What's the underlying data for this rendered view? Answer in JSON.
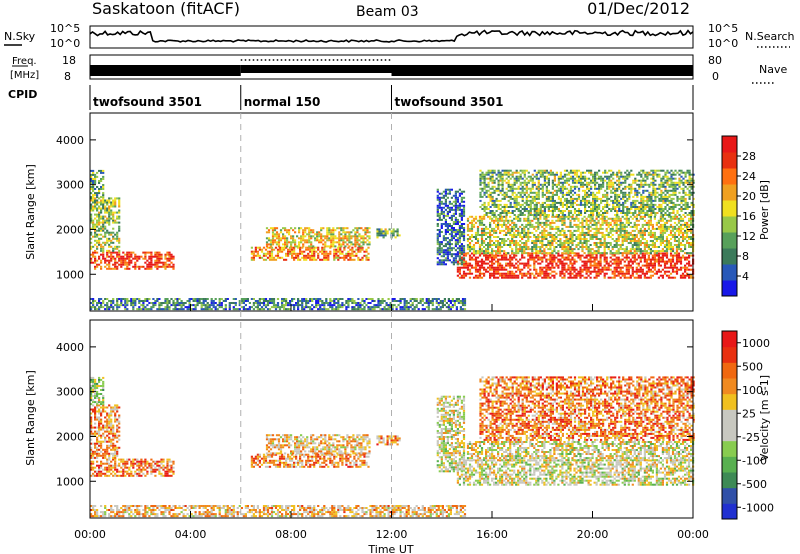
{
  "header": {
    "station": "Saskatoon (fitACF)",
    "beam": "Beam 03",
    "date": "01/Dec/2012"
  },
  "noise_panel": {
    "left_label": "N.Sky",
    "right_label": "N.Search",
    "left_ticks": [
      "10^5",
      "10^0"
    ],
    "right_ticks": [
      "10^5",
      "10^0"
    ]
  },
  "freq_panel": {
    "left_label_line1": "Freq.",
    "left_label_line2": "[MHz]",
    "right_label": "Nave",
    "left_ticks": [
      "18",
      "8"
    ],
    "right_ticks": [
      "80",
      "0"
    ]
  },
  "cpid": {
    "label": "CPID",
    "segments": [
      {
        "start_hour": 0,
        "end_hour": 6,
        "name": "twofsound 3501"
      },
      {
        "start_hour": 6,
        "end_hour": 12,
        "name": "normal 150"
      },
      {
        "start_hour": 12,
        "end_hour": 24,
        "name": "twofsound 3501"
      }
    ]
  },
  "x_axis": {
    "label": "Time UT",
    "range_hours": [
      0,
      24
    ],
    "ticks": [
      {
        "hour": 0,
        "label": "00:00"
      },
      {
        "hour": 4,
        "label": "04:00"
      },
      {
        "hour": 8,
        "label": "08:00"
      },
      {
        "hour": 12,
        "label": "12:00"
      },
      {
        "hour": 16,
        "label": "16:00"
      },
      {
        "hour": 20,
        "label": "20:00"
      },
      {
        "hour": 24,
        "label": "00:00"
      }
    ],
    "dashed_markers_hours": [
      6,
      12
    ]
  },
  "chart_data": [
    {
      "type": "heatmap",
      "parameter": "power",
      "ylabel": "Slant Range [km]",
      "ylim": [
        180,
        4600
      ],
      "yticks": [
        1000,
        2000,
        3000,
        4000
      ],
      "colorbar": {
        "label": "Power [dB]",
        "ticks": [
          "4",
          "8",
          "12",
          "16",
          "20",
          "24",
          "28"
        ],
        "colors": [
          "#1818e8",
          "#2858b8",
          "#3b7a5a",
          "#57a05a",
          "#98c848",
          "#f0e020",
          "#f0a020",
          "#ff7010",
          "#e83010",
          "#e81818"
        ]
      },
      "regions": [
        {
          "t": [
            0.0,
            3.3
          ],
          "r": [
            1100,
            1500
          ],
          "level": 0.85
        },
        {
          "t": [
            0.0,
            1.2
          ],
          "r": [
            1500,
            2700
          ],
          "level": 0.45
        },
        {
          "t": [
            0.0,
            0.5
          ],
          "r": [
            2700,
            3300
          ],
          "level": 0.35
        },
        {
          "t": [
            6.4,
            11.1
          ],
          "r": [
            1300,
            1600
          ],
          "level": 0.7
        },
        {
          "t": [
            7.0,
            11.1
          ],
          "r": [
            1600,
            2050
          ],
          "level": 0.55
        },
        {
          "t": [
            11.4,
            12.3
          ],
          "r": [
            1800,
            2000
          ],
          "level": 0.4
        },
        {
          "t": [
            0.0,
            14.9
          ],
          "r": [
            200,
            450
          ],
          "level": 0.25
        },
        {
          "t": [
            14.6,
            24.0
          ],
          "r": [
            900,
            1450
          ],
          "level": 0.9
        },
        {
          "t": [
            15.0,
            24.0
          ],
          "r": [
            1450,
            2300
          ],
          "level": 0.5
        },
        {
          "t": [
            15.5,
            24.0
          ],
          "r": [
            2300,
            3300
          ],
          "level": 0.4
        },
        {
          "t": [
            13.8,
            14.9
          ],
          "r": [
            1200,
            2900
          ],
          "level": 0.2
        }
      ]
    },
    {
      "type": "heatmap",
      "parameter": "velocity",
      "ylabel": "Slant Range [km]",
      "ylim": [
        180,
        4600
      ],
      "yticks": [
        1000,
        2000,
        3000,
        4000
      ],
      "colorbar": {
        "label": "Velocity [m s-1]",
        "ticks": [
          "1000",
          "500",
          "100",
          "25",
          "-25",
          "-100",
          "-500",
          "-1000"
        ],
        "colors": [
          "#2030d0",
          "#3050a8",
          "#3d8a55",
          "#58b050",
          "#88cc50",
          "#c8c8c0",
          "#c8c8c0",
          "#f0c020",
          "#f08a20",
          "#f06810",
          "#e83010",
          "#e81818"
        ]
      },
      "regions": [
        {
          "t": [
            0.0,
            3.3
          ],
          "r": [
            1100,
            1500
          ],
          "level": 0.75
        },
        {
          "t": [
            0.0,
            1.2
          ],
          "r": [
            1500,
            2700
          ],
          "level": 0.7
        },
        {
          "t": [
            0.0,
            0.5
          ],
          "r": [
            2700,
            3300
          ],
          "level": 0.45
        },
        {
          "t": [
            6.4,
            11.1
          ],
          "r": [
            1300,
            1600
          ],
          "level": 0.72
        },
        {
          "t": [
            7.0,
            11.1
          ],
          "r": [
            1600,
            2050
          ],
          "level": 0.6
        },
        {
          "t": [
            11.4,
            12.3
          ],
          "r": [
            1800,
            2000
          ],
          "level": 0.72
        },
        {
          "t": [
            0.0,
            14.9
          ],
          "r": [
            200,
            450
          ],
          "level": 0.62
        },
        {
          "t": [
            14.6,
            24.0
          ],
          "r": [
            900,
            1450
          ],
          "level": 0.5
        },
        {
          "t": [
            15.0,
            24.0
          ],
          "r": [
            1450,
            1900
          ],
          "level": 0.52
        },
        {
          "t": [
            15.5,
            24.0
          ],
          "r": [
            1900,
            3300
          ],
          "level": 0.75
        },
        {
          "t": [
            13.8,
            14.9
          ],
          "r": [
            1200,
            2900
          ],
          "level": 0.5
        }
      ]
    }
  ]
}
